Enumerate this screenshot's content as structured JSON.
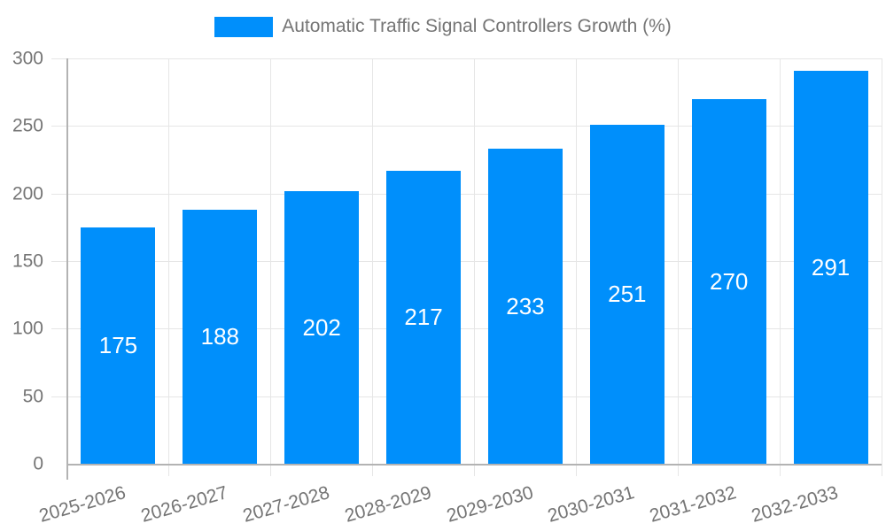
{
  "legend": {
    "label": "Automatic Traffic Signal Controllers Growth (%)"
  },
  "chart_data": {
    "type": "bar",
    "title": "Automatic Traffic Signal Controllers Growth (%)",
    "categories": [
      "2025-2026",
      "2026-2027",
      "2027-2028",
      "2028-2029",
      "2029-2030",
      "2030-2031",
      "2031-2032",
      "2032-2033"
    ],
    "values": [
      175,
      188,
      202,
      217,
      233,
      251,
      270,
      291
    ],
    "xlabel": "",
    "ylabel": "",
    "ylim": [
      0,
      300
    ],
    "y_ticks": [
      0,
      50,
      100,
      150,
      200,
      250,
      300
    ],
    "grid": true,
    "legend_position": "top-center",
    "bar_color": "#008FFB",
    "value_label_color": "#ffffff",
    "axis_text_color": "#757575",
    "axis_line_color": "#b3b3b3",
    "grid_color": "#e6e6e6"
  }
}
